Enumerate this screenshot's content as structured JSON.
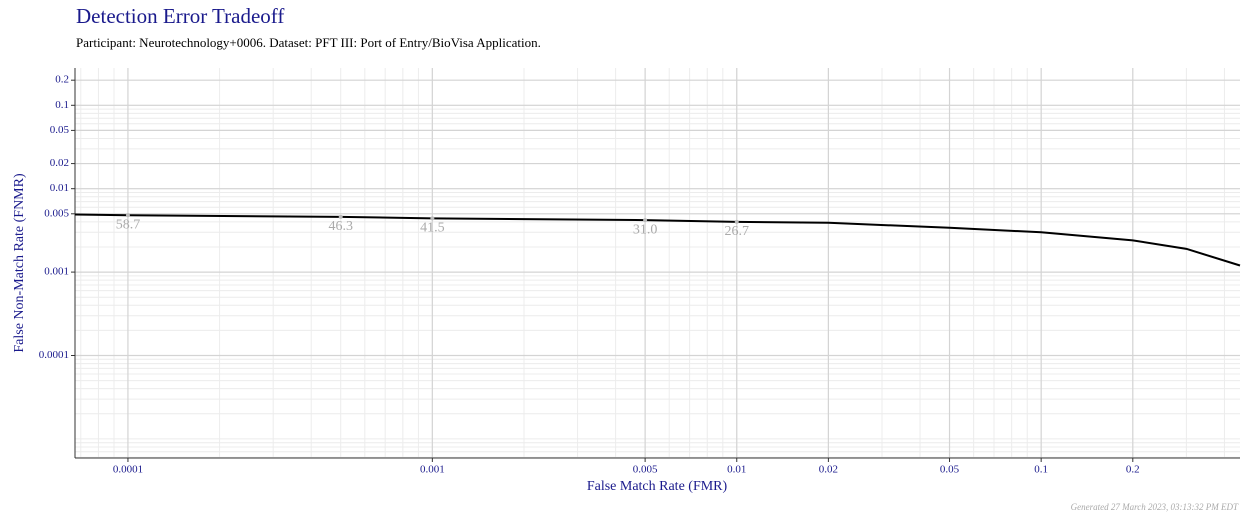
{
  "chart_data": {
    "type": "line",
    "title": "Detection Error Tradeoff",
    "subtitle": "Participant: Neurotechnology+0006. Dataset: PFT III: Port of Entry/BioVisa Application.",
    "xlabel": "False Match Rate (FMR)",
    "ylabel": "False Non-Match Rate (FNMR)",
    "footer": "Generated 27 March 2023, 03:13:32 PM EDT",
    "xscale": "log",
    "yscale": "log",
    "grid": true,
    "color": "#000000",
    "xlim": [
      6.7e-05,
      0.45
    ],
    "ylim": [
      5.9e-06,
      0.28
    ],
    "xticks": [
      0.0001,
      0.001,
      0.005,
      0.01,
      0.02,
      0.05,
      0.1,
      0.2
    ],
    "yticks": [
      0.0001,
      0.001,
      0.005,
      0.01,
      0.02,
      0.05,
      0.1,
      0.2
    ],
    "x": [
      6.7e-05,
      0.0001,
      0.0005,
      0.001,
      0.005,
      0.01,
      0.02,
      0.05,
      0.1,
      0.2,
      0.3,
      0.45
    ],
    "values": [
      0.0049,
      0.0048,
      0.0046,
      0.0044,
      0.0042,
      0.004,
      0.0039,
      0.0034,
      0.003,
      0.0024,
      0.0019,
      0.0012
    ],
    "annotations": [
      {
        "x": 0.0001,
        "y": 0.0048,
        "text": "58.7"
      },
      {
        "x": 0.0005,
        "y": 0.0046,
        "text": "46.3"
      },
      {
        "x": 0.001,
        "y": 0.0044,
        "text": "41.5"
      },
      {
        "x": 0.005,
        "y": 0.0042,
        "text": "31.0"
      },
      {
        "x": 0.01,
        "y": 0.004,
        "text": "26.7"
      }
    ]
  }
}
